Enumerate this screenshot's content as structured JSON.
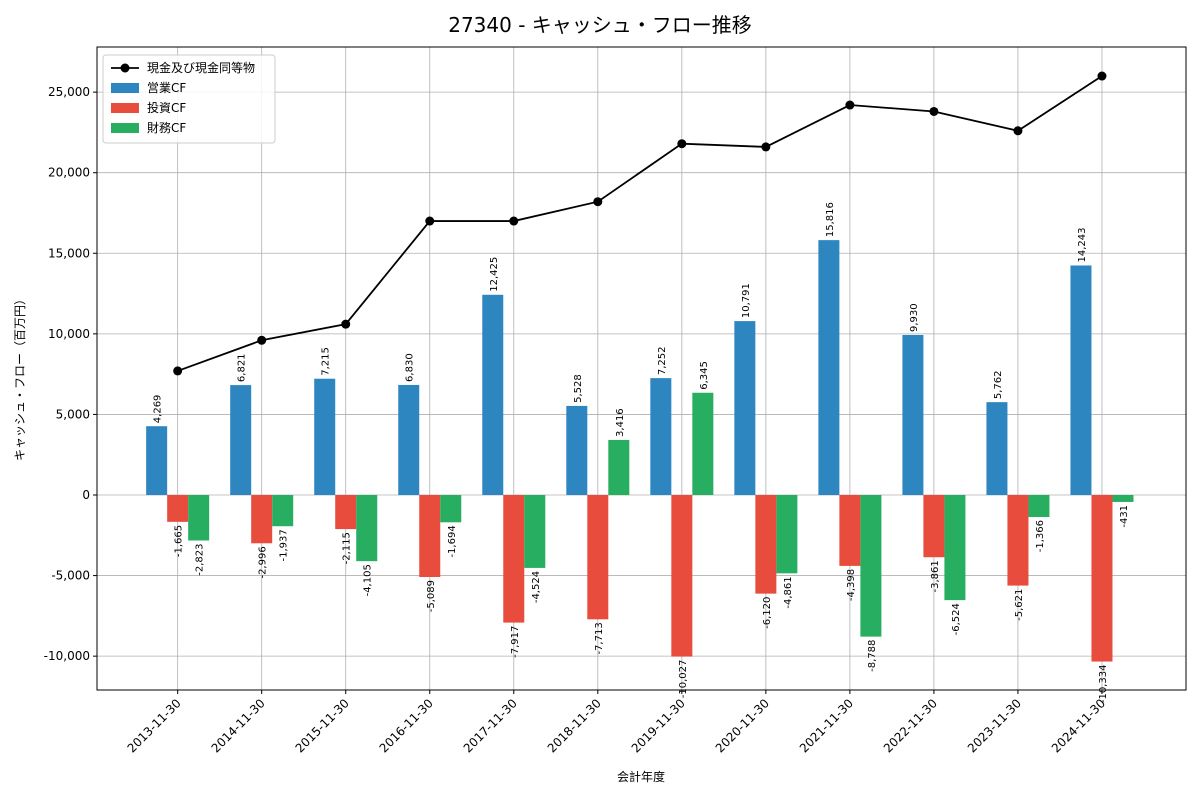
{
  "chart_data": {
    "type": "bar",
    "title": "27340 - キャッシュ・フロー推移",
    "xlabel": "会計年度",
    "ylabel": "キャッシュ・フロー（百万円）",
    "ylim": [
      -12100,
      27800
    ],
    "yticks": [
      -10000,
      -5000,
      0,
      5000,
      10000,
      15000,
      20000,
      25000
    ],
    "ytick_labels": [
      "-10,000",
      "-5,000",
      "0",
      "5,000",
      "10,000",
      "15,000",
      "20,000",
      "25,000"
    ],
    "grid": true,
    "legend_position": "top-left",
    "categories": [
      "2013-11-30",
      "2014-11-30",
      "2015-11-30",
      "2016-11-30",
      "2017-11-30",
      "2018-11-30",
      "2019-11-30",
      "2020-11-30",
      "2021-11-30",
      "2022-11-30",
      "2023-11-30",
      "2024-11-30"
    ],
    "series": [
      {
        "name": "現金及び現金同等物",
        "kind": "line",
        "color": "#000000",
        "values": [
          7700,
          9600,
          10600,
          17000,
          17000,
          18200,
          21800,
          21600,
          24200,
          23800,
          22600,
          26000
        ]
      },
      {
        "name": "営業CF",
        "kind": "bar",
        "color": "#2e86c1",
        "values": [
          4269,
          6821,
          7215,
          6830,
          12425,
          5528,
          7252,
          10791,
          15816,
          9930,
          5762,
          14243
        ],
        "labels": [
          "4,269",
          "6,821",
          "7,215",
          "6,830",
          "12,425",
          "5,528",
          "7,252",
          "10,791",
          "15,816",
          "9,930",
          "5,762",
          "14,243"
        ]
      },
      {
        "name": "投資CF",
        "kind": "bar",
        "color": "#e74c3c",
        "values": [
          -1665,
          -2996,
          -2115,
          -5089,
          -7917,
          -7713,
          -10027,
          -6120,
          -4398,
          -3861,
          -5621,
          -10334
        ],
        "labels": [
          "-1,665",
          "-2,996",
          "-2,115",
          "-5,089",
          "-7,917",
          "-7,713",
          "-10,027",
          "-6,120",
          "-4,398",
          "-3,861",
          "-5,621",
          "-10,334"
        ]
      },
      {
        "name": "財務CF",
        "kind": "bar",
        "color": "#27ae60",
        "values": [
          -2823,
          -1937,
          -4105,
          -1694,
          -4524,
          3416,
          6345,
          -4861,
          -8788,
          -6524,
          -1366,
          -431
        ],
        "labels": [
          "-2,823",
          "-1,937",
          "-4,105",
          "-1,694",
          "-4,524",
          "3,416",
          "6,345",
          "-4,861",
          "-8,788",
          "-6,524",
          "-1,366",
          "-431"
        ]
      }
    ]
  }
}
